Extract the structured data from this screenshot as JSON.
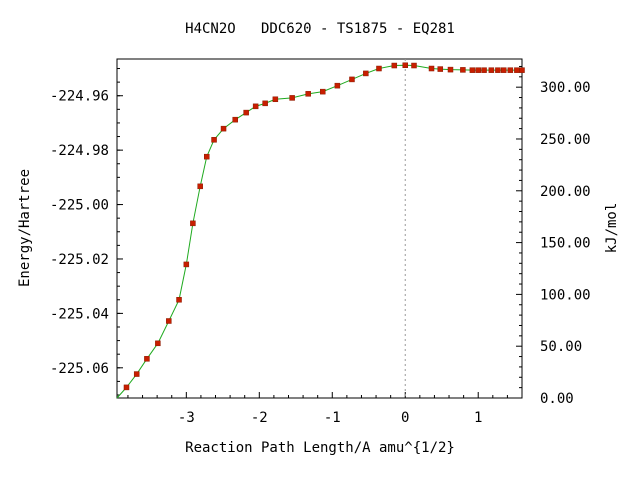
{
  "chart_data": {
    "type": "line",
    "title": "H4CN2O   DDC620 - TS1875 - EQ281",
    "xlabel": "Reaction Path Length/A amu^{1/2}",
    "ylabel": "Energy/Hartree",
    "y2label": "kJ/mol",
    "xlim": [
      -3.95,
      1.6
    ],
    "ylim": [
      -225.0711,
      -224.9465
    ],
    "y2lim": [
      0.0,
      327.2
    ],
    "x_ticks": [
      -3,
      -2,
      -1,
      0,
      1
    ],
    "x_tick_labels": [
      "-3",
      "-2",
      "-1",
      "0",
      "1"
    ],
    "y_ticks": [
      -225.06,
      -225.04,
      -225.02,
      -225.0,
      -224.98,
      -224.96
    ],
    "y_tick_labels": [
      "-225.06",
      "-225.04",
      "-225.02",
      "-225.00",
      "-224.98",
      "-224.96"
    ],
    "y2_ticks": [
      0,
      50,
      100,
      150,
      200,
      250,
      300
    ],
    "y2_tick_labels": [
      "0.00",
      "50.00",
      "100.00",
      "150.00",
      "200.00",
      "250.00",
      "300.00"
    ],
    "ts_marker_x": 0.0,
    "grid": false,
    "line_color": "#1faa1f",
    "marker_color": "#c81e00",
    "series": [
      {
        "x": [
          -3.95,
          -3.82,
          -3.68,
          -3.54,
          -3.39,
          -3.24,
          -3.1,
          -3.0,
          -2.91,
          -2.81,
          -2.72,
          -2.62,
          -2.49,
          -2.33,
          -2.18,
          -2.05,
          -1.92,
          -1.78,
          -1.55,
          -1.33,
          -1.13,
          -0.93,
          -0.73,
          -0.54,
          -0.36,
          -0.15,
          0.0,
          0.12,
          0.36,
          0.48,
          0.62,
          0.79,
          0.92,
          1.0,
          1.08,
          1.18,
          1.27,
          1.35,
          1.44,
          1.53,
          1.6
        ],
        "y": [
          -225.0711,
          -225.0672,
          -225.0623,
          -225.0567,
          -225.051,
          -225.0428,
          -225.035,
          -225.022,
          -225.0069,
          -224.9933,
          -224.9824,
          -224.9762,
          -224.9721,
          -224.9688,
          -224.9662,
          -224.9639,
          -224.9628,
          -224.9613,
          -224.9608,
          -224.9593,
          -224.9585,
          -224.9563,
          -224.954,
          -224.9518,
          -224.95,
          -224.9489,
          -224.9488,
          -224.9489,
          -224.95,
          -224.9502,
          -224.9504,
          -224.9505,
          -224.9506,
          -224.9506,
          -224.9506,
          -224.9506,
          -224.9506,
          -224.9506,
          -224.9506,
          -224.9506,
          -224.9506
        ]
      }
    ]
  }
}
